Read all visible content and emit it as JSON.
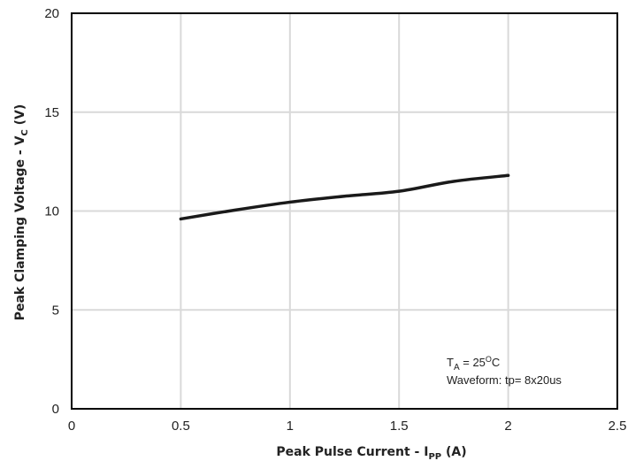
{
  "chart_data": {
    "type": "line",
    "xlabel": {
      "main": "Peak Pulse Current - I",
      "sub": "PP",
      "tail": " (A)"
    },
    "ylabel": {
      "main": "Peak Clamping Voltage - V",
      "sub": "C",
      "tail": " (V)"
    },
    "xlim": [
      0,
      2.5
    ],
    "ylim": [
      0,
      20
    ],
    "x_ticks": [
      0,
      0.5,
      1,
      1.5,
      2,
      2.5
    ],
    "y_ticks": [
      0,
      5,
      10,
      15,
      20
    ],
    "x_tick_labels": [
      "0",
      "0.5",
      "1",
      "1.5",
      "2",
      "2.5"
    ],
    "y_tick_labels": [
      "0",
      "5",
      "10",
      "15",
      "20"
    ],
    "grid": true,
    "series": [
      {
        "x": [
          0.5,
          0.75,
          1.0,
          1.25,
          1.5,
          1.75,
          2.0
        ],
        "y": [
          9.6,
          10.05,
          10.45,
          10.75,
          11.0,
          11.5,
          11.8
        ]
      }
    ],
    "annotations": {
      "line1": {
        "main": "T",
        "sub": "A",
        "mid": " = 25",
        "sup": "O",
        "tail": "C"
      },
      "line2": "Waveform: tp= 8x20us"
    }
  },
  "colors": {
    "line": "#1a1a1a",
    "grid": "#d9d9d9",
    "axis": "#000000"
  }
}
